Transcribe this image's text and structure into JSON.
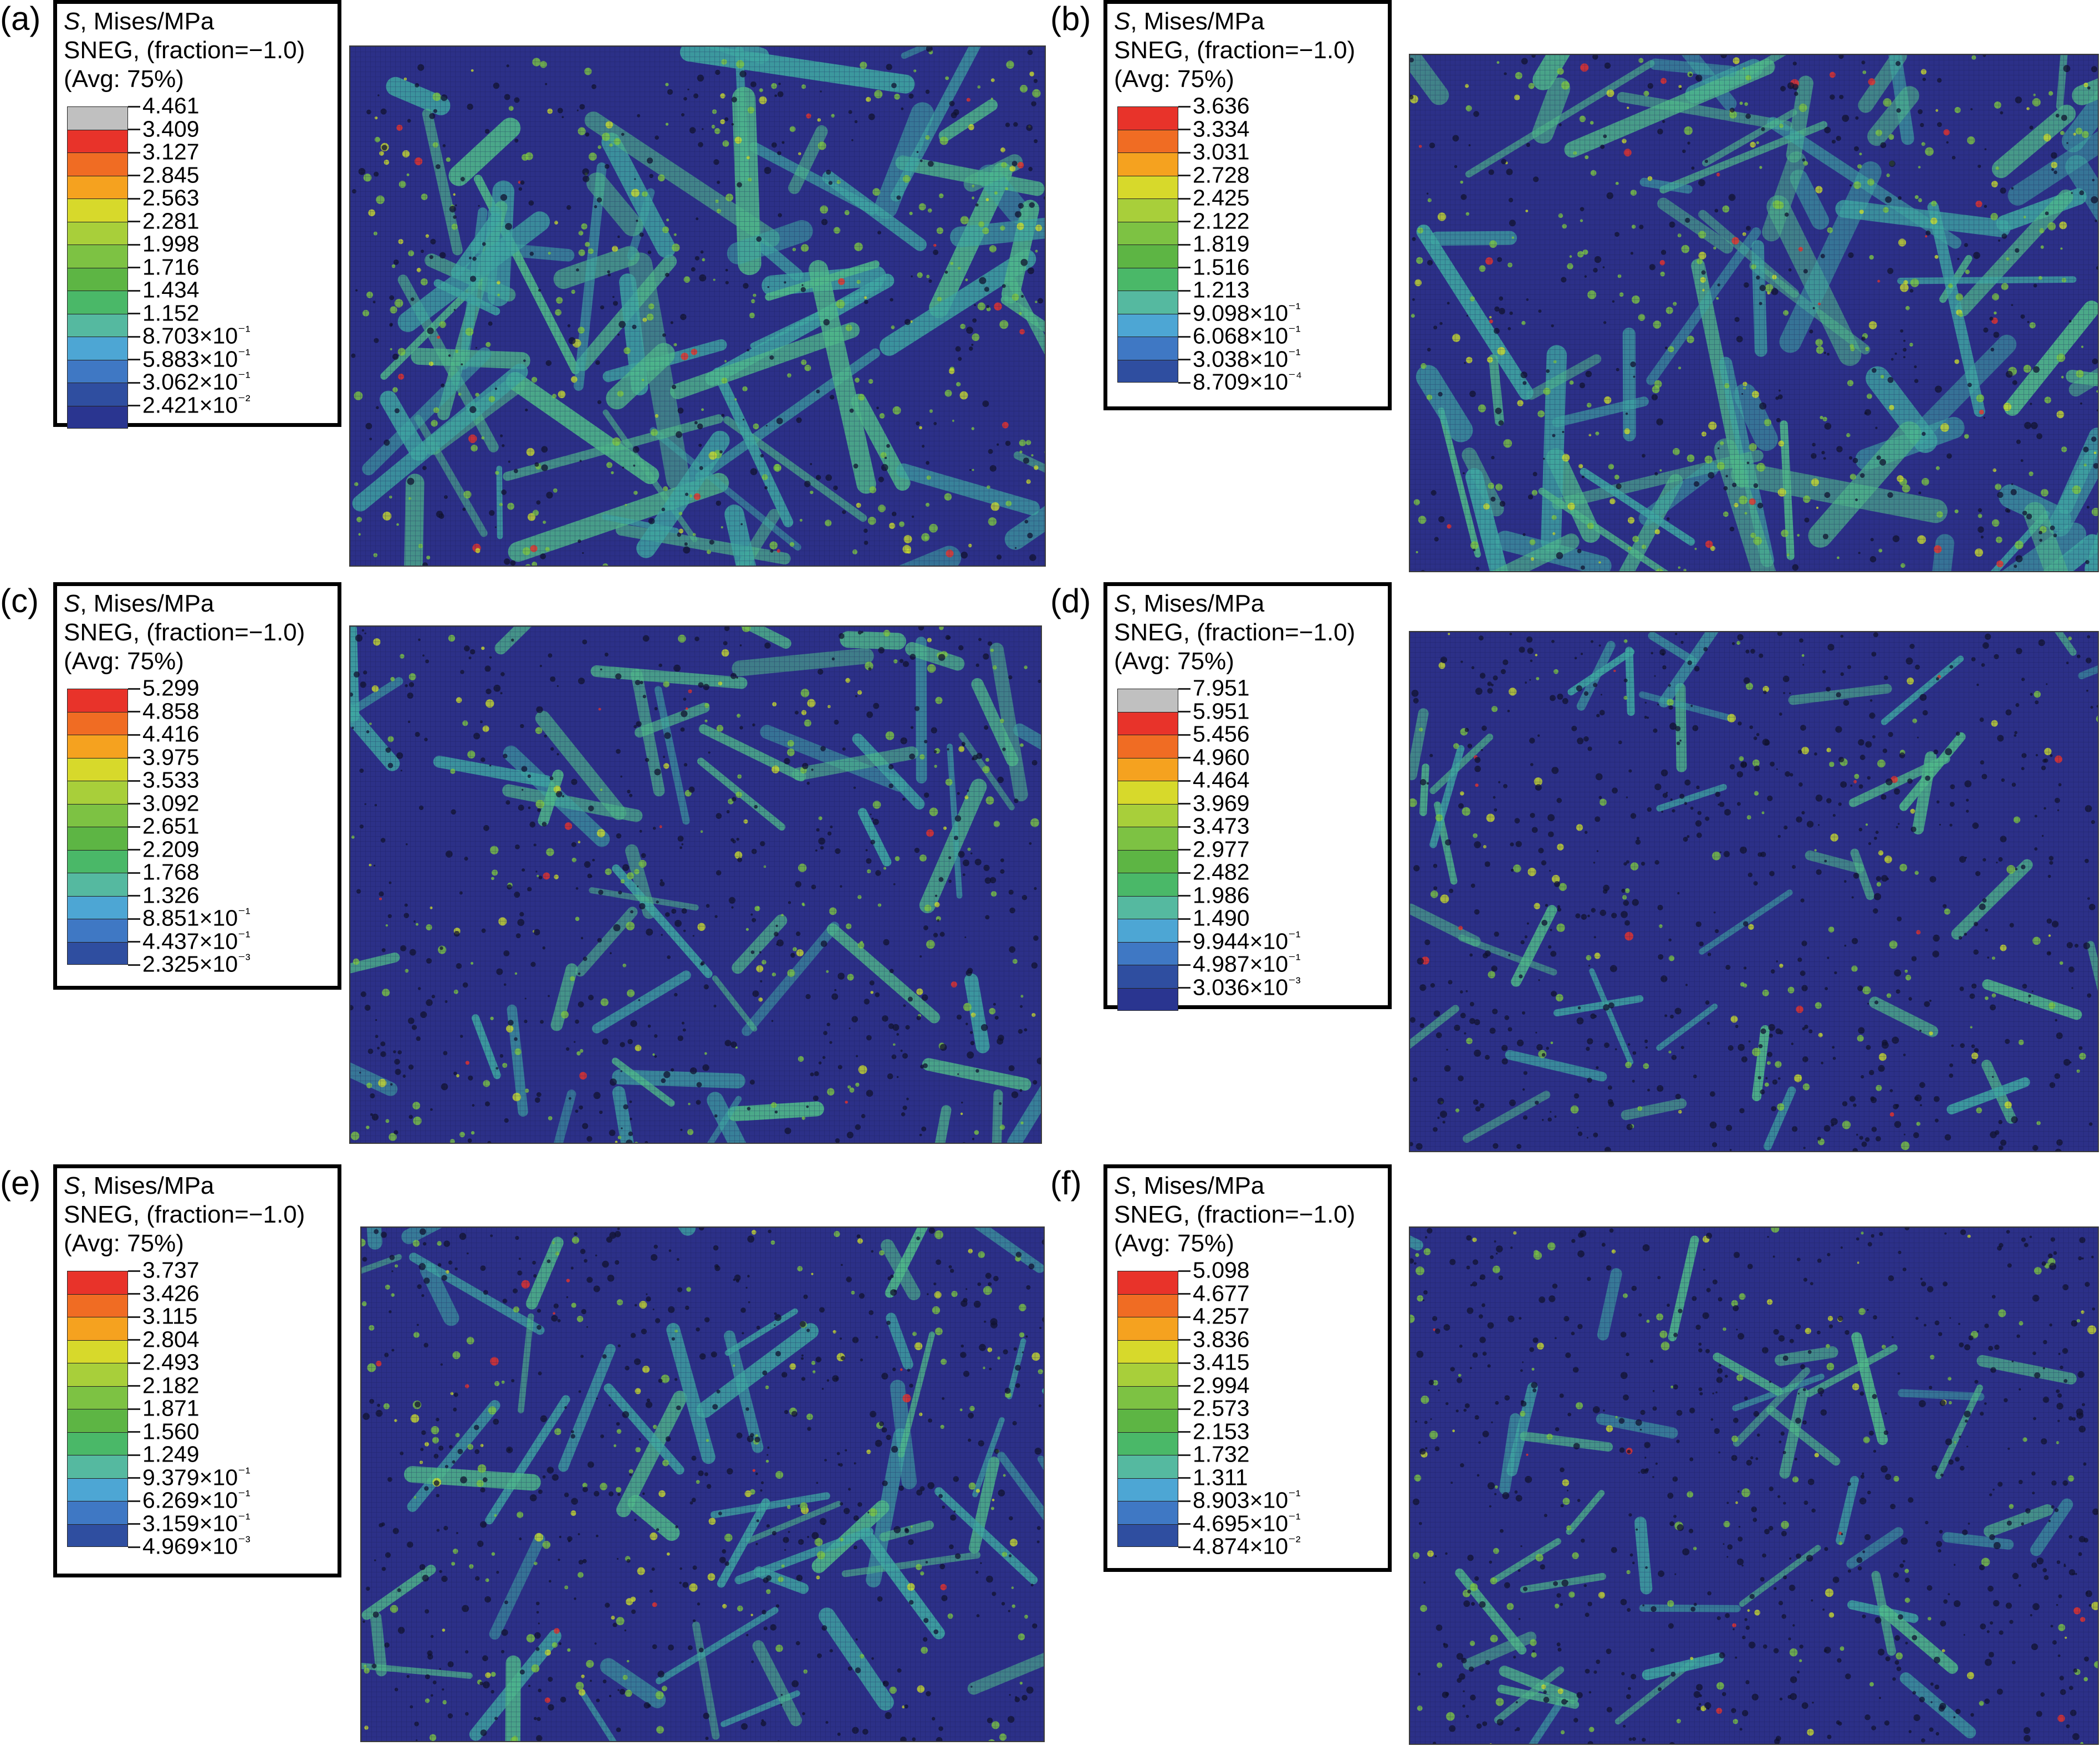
{
  "figure": {
    "legend_header": {
      "line1_symbol": "S",
      "line1_rest": ", Mises/MPa",
      "line2": "SNEG, (fraction=−1.0)",
      "line3": "(Avg: 75%)"
    },
    "panels": [
      {
        "id": "a",
        "label": "(a)",
        "band_colors": [
          "#c0c0c0",
          "#e8332a",
          "#f06c23",
          "#f5a21f",
          "#d7d92b",
          "#a8cf3a",
          "#7dc243",
          "#5db544",
          "#4ab868",
          "#55b9a0",
          "#4da6d4",
          "#3f78c4",
          "#2f4ea0",
          "#2a3590"
        ],
        "values": [
          "4.461",
          "3.409",
          "3.127",
          "2.845",
          "2.563",
          "2.281",
          "1.998",
          "1.716",
          "1.434",
          "1.152",
          "8.703×10⁻¹",
          "5.883×10⁻¹",
          "3.062×10⁻¹",
          "2.421×10⁻²"
        ],
        "mesh_density": "high"
      },
      {
        "id": "b",
        "label": "(b)",
        "band_colors": [
          "#e8332a",
          "#f06c23",
          "#f5a21f",
          "#d7d92b",
          "#a8cf3a",
          "#7dc243",
          "#5db544",
          "#4ab868",
          "#55b9a0",
          "#4da6d4",
          "#3f78c4",
          "#2f4ea0"
        ],
        "values": [
          "3.636",
          "3.334",
          "3.031",
          "2.728",
          "2.425",
          "2.122",
          "1.819",
          "1.516",
          "1.213",
          "9.098×10⁻¹",
          "6.068×10⁻¹",
          "3.038×10⁻¹",
          "8.709×10⁻⁴"
        ],
        "mesh_density": "high"
      },
      {
        "id": "c",
        "label": "(c)",
        "band_colors": [
          "#e8332a",
          "#f06c23",
          "#f5a21f",
          "#d7d92b",
          "#a8cf3a",
          "#7dc243",
          "#5db544",
          "#4ab868",
          "#55b9a0",
          "#4da6d4",
          "#3f78c4",
          "#2f4ea0"
        ],
        "values": [
          "5.299",
          "4.858",
          "4.416",
          "3.975",
          "3.533",
          "3.092",
          "2.651",
          "2.209",
          "1.768",
          "1.326",
          "8.851×10⁻¹",
          "4.437×10⁻¹",
          "2.325×10⁻³"
        ],
        "mesh_density": "medium"
      },
      {
        "id": "d",
        "label": "(d)",
        "band_colors": [
          "#c0c0c0",
          "#e8332a",
          "#f06c23",
          "#f5a21f",
          "#d7d92b",
          "#a8cf3a",
          "#7dc243",
          "#5db544",
          "#4ab868",
          "#55b9a0",
          "#4da6d4",
          "#3f78c4",
          "#2f4ea0",
          "#2a3590"
        ],
        "values": [
          "7.951",
          "5.951",
          "5.456",
          "4.960",
          "4.464",
          "3.969",
          "3.473",
          "2.977",
          "2.482",
          "1.986",
          "1.490",
          "9.944×10⁻¹",
          "4.987×10⁻¹",
          "3.036×10⁻³"
        ],
        "mesh_density": "low"
      },
      {
        "id": "e",
        "label": "(e)",
        "band_colors": [
          "#e8332a",
          "#f06c23",
          "#f5a21f",
          "#d7d92b",
          "#a8cf3a",
          "#7dc243",
          "#5db544",
          "#4ab868",
          "#55b9a0",
          "#4da6d4",
          "#3f78c4",
          "#2f4ea0"
        ],
        "values": [
          "3.737",
          "3.426",
          "3.115",
          "2.804",
          "2.493",
          "2.182",
          "1.871",
          "1.560",
          "1.249",
          "9.379×10⁻¹",
          "6.269×10⁻¹",
          "3.159×10⁻¹",
          "4.969×10⁻³"
        ],
        "mesh_density": "medium"
      },
      {
        "id": "f",
        "label": "(f)",
        "band_colors": [
          "#e8332a",
          "#f06c23",
          "#f5a21f",
          "#d7d92b",
          "#a8cf3a",
          "#7dc243",
          "#5db544",
          "#4ab868",
          "#55b9a0",
          "#4da6d4",
          "#3f78c4",
          "#2f4ea0"
        ],
        "values": [
          "5.098",
          "4.677",
          "4.257",
          "3.836",
          "3.415",
          "2.994",
          "2.573",
          "2.153",
          "1.732",
          "1.311",
          "8.903×10⁻¹",
          "4.695×10⁻¹",
          "4.874×10⁻²"
        ],
        "mesh_density": "low"
      }
    ]
  }
}
